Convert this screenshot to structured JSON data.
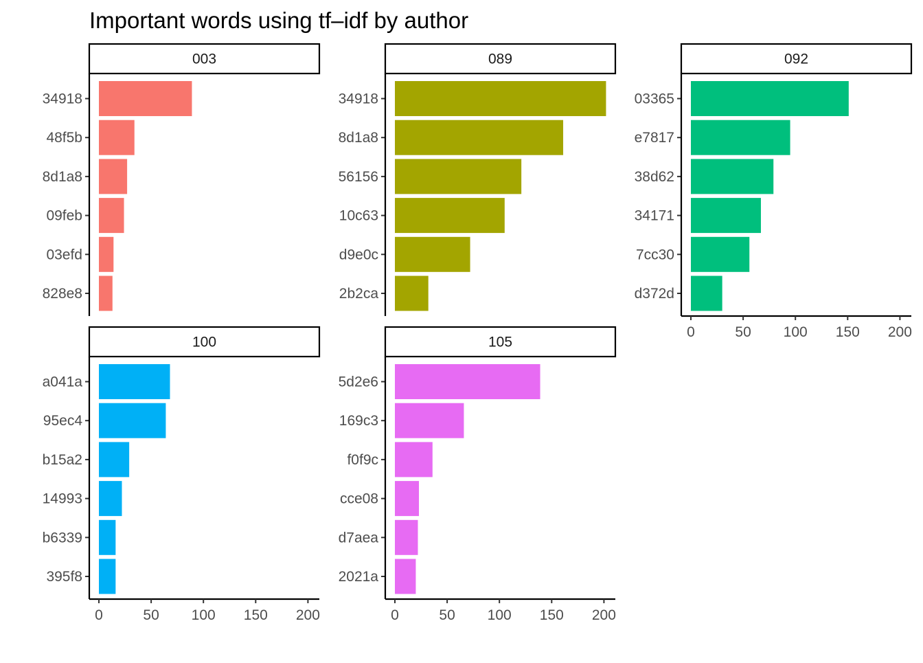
{
  "chart_data": {
    "type": "bar",
    "orientation": "horizontal",
    "title": "Important words using tf–idf by author",
    "xlabel": "",
    "ylabel": "",
    "xlim": [
      0,
      200
    ],
    "x_ticks": [
      0,
      50,
      100,
      150,
      200
    ],
    "grid": false,
    "legend": "none",
    "facets": [
      {
        "name": "003",
        "color": "#F8766D",
        "categories": [
          "34918",
          "48f5b",
          "8d1a8",
          "09feb",
          "03efd",
          "828e8"
        ],
        "values": [
          89,
          34,
          27,
          24,
          14,
          13
        ]
      },
      {
        "name": "089",
        "color": "#A3A500",
        "categories": [
          "34918",
          "8d1a8",
          "56156",
          "10c63",
          "d9e0c",
          "2b2ca"
        ],
        "values": [
          202,
          161,
          121,
          105,
          72,
          32
        ]
      },
      {
        "name": "092",
        "color": "#00BF7D",
        "categories": [
          "03365",
          "e7817",
          "38d62",
          "34171",
          "7cc30",
          "d372d"
        ],
        "values": [
          151,
          95,
          79,
          67,
          56,
          30
        ]
      },
      {
        "name": "100",
        "color": "#00B0F6",
        "categories": [
          "a041a",
          "95ec4",
          "b15a2",
          "14993",
          "b6339",
          "395f8"
        ],
        "values": [
          68,
          64,
          29,
          22,
          16,
          16
        ]
      },
      {
        "name": "105",
        "color": "#E76BF3",
        "categories": [
          "5d2e6",
          "169c3",
          "f0f9c",
          "cce08",
          "d7aea",
          "2021a"
        ],
        "values": [
          139,
          66,
          36,
          23,
          22,
          20
        ]
      }
    ]
  }
}
